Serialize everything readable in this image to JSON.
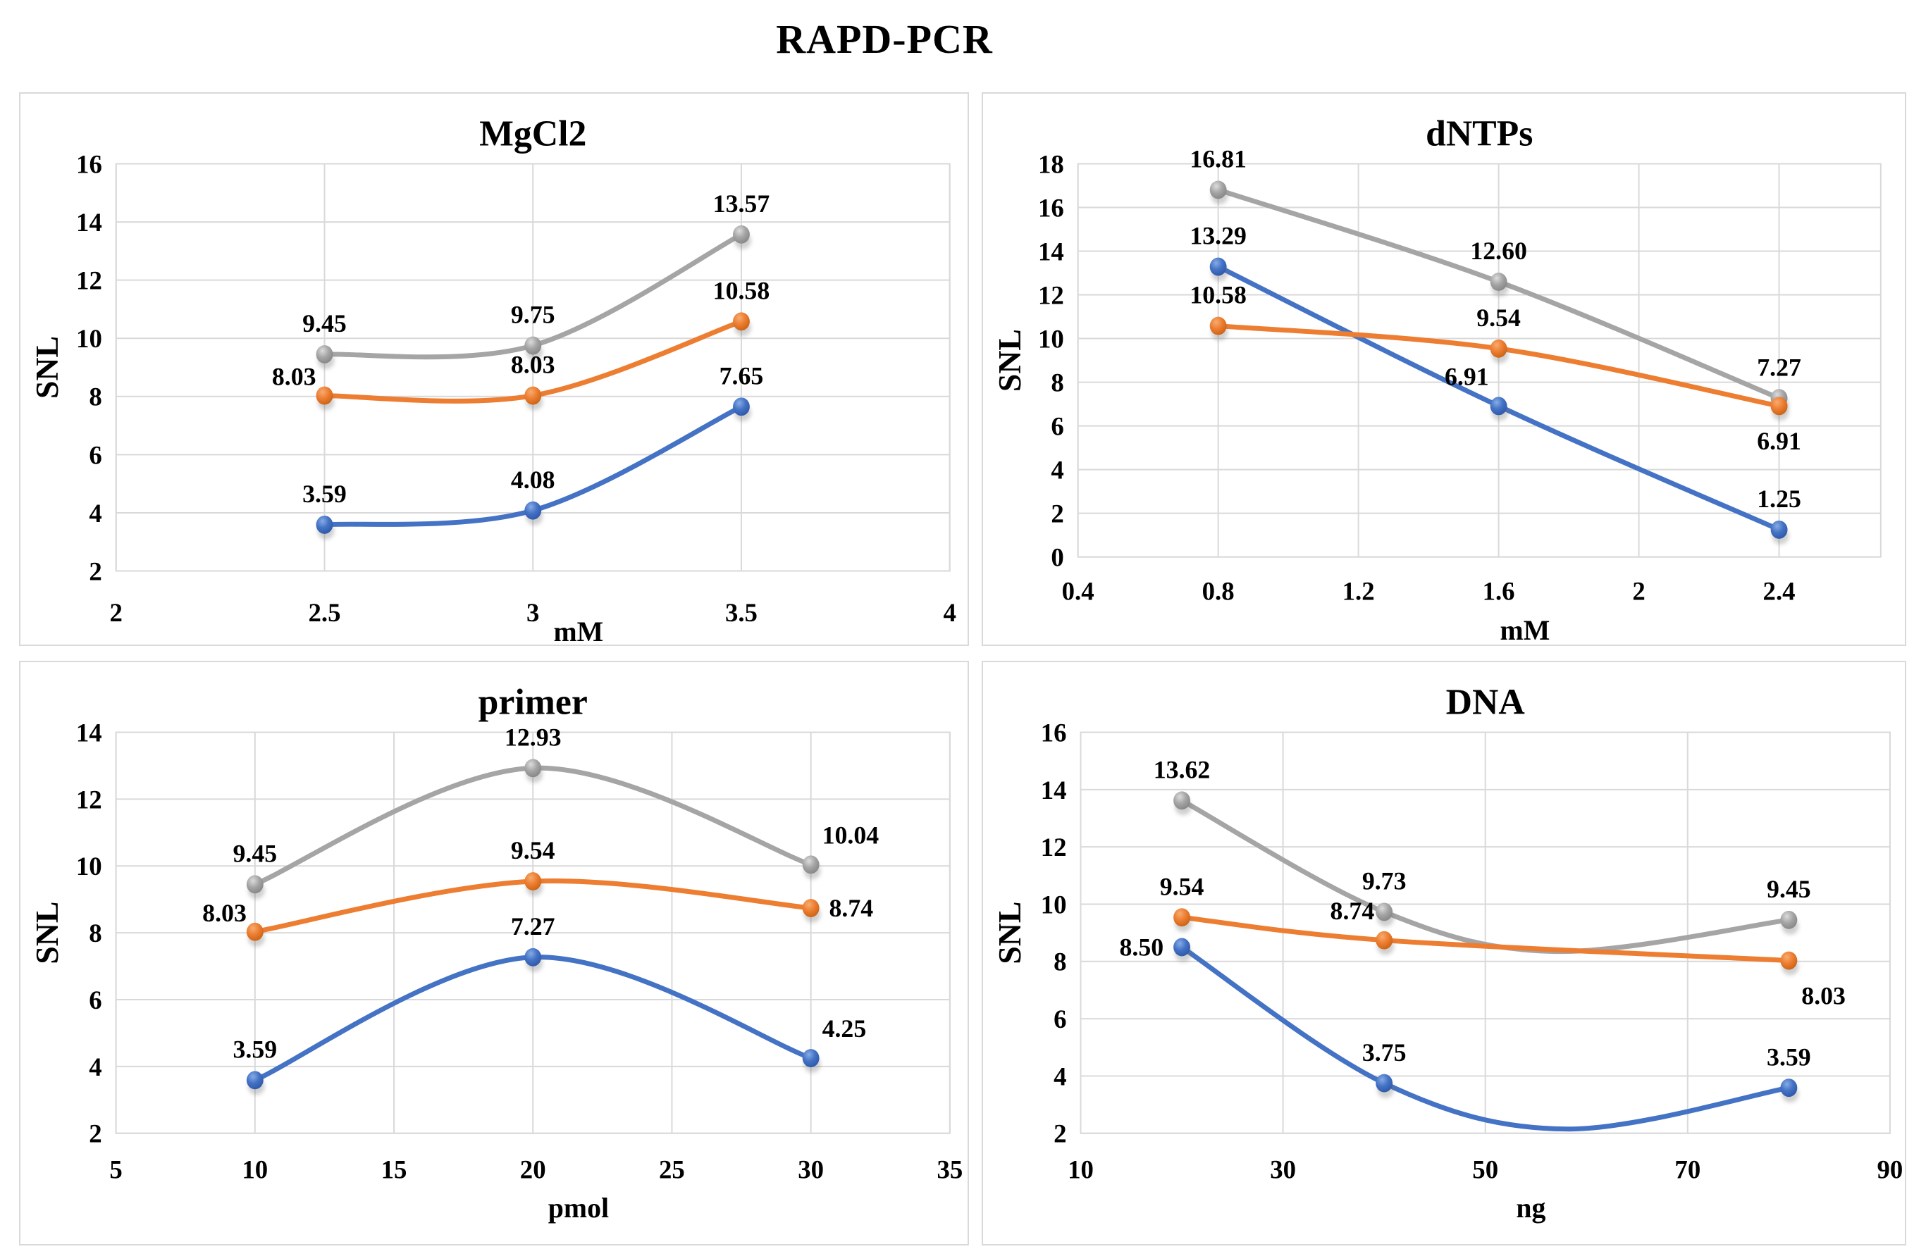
{
  "main_title": "RAPD-PCR",
  "colors": {
    "blue": "#4472C4",
    "orange": "#ED7D31",
    "gray": "#A5A5A5",
    "gridline": "#D9D9D9",
    "panel_border": "#D9D9D9",
    "text": "#000000",
    "background": "#FFFFFF"
  },
  "chart_data": [
    {
      "id": "mgcl2",
      "type": "line",
      "title": "MgCl2",
      "xlabel": "mM",
      "ylabel": "SNL",
      "xlim": [
        2,
        4
      ],
      "ylim": [
        2,
        16
      ],
      "x_ticks": [
        "2",
        "2.5",
        "3",
        "3.5",
        "4"
      ],
      "y_ticks": [
        "2",
        "4",
        "6",
        "8",
        "10",
        "12",
        "14",
        "16"
      ],
      "grid": true,
      "legend": "none",
      "x": [
        2.5,
        3,
        3.5
      ],
      "series": [
        {
          "name": "blue",
          "color": "blue",
          "values": [
            3.59,
            4.08,
            7.65
          ],
          "labels": [
            "3.59",
            "4.08",
            "7.65"
          ],
          "label_pos": [
            "above",
            "above",
            "above"
          ]
        },
        {
          "name": "gray",
          "color": "gray",
          "values": [
            9.45,
            9.75,
            13.57
          ],
          "labels": [
            "9.45",
            "9.75",
            "13.57"
          ],
          "label_pos": [
            "above",
            "above",
            "above"
          ]
        },
        {
          "name": "orange",
          "color": "orange",
          "values": [
            8.03,
            8.03,
            10.58
          ],
          "labels": [
            "8.03",
            "8.03",
            "10.58"
          ],
          "label_pos": [
            "upleft",
            "above",
            "above"
          ]
        }
      ]
    },
    {
      "id": "dntps",
      "type": "line",
      "title": "dNTPs",
      "xlabel": "mM",
      "ylabel": "SNL",
      "xlim": [
        0.4,
        2.4
      ],
      "ylim": [
        0,
        18
      ],
      "x_ticks": [
        "0.4",
        "0.8",
        "1.2",
        "1.6",
        "2",
        "2.4"
      ],
      "y_ticks": [
        "0",
        "2",
        "4",
        "6",
        "8",
        "10",
        "12",
        "14",
        "16",
        "18"
      ],
      "grid": true,
      "legend": "none",
      "x": [
        0.8,
        1.6,
        2.4
      ],
      "series": [
        {
          "name": "blue",
          "color": "blue",
          "values": [
            13.29,
            6.91,
            1.25
          ],
          "labels": [
            "13.29",
            "6.91",
            "1.25"
          ],
          "label_pos": [
            "above",
            "above-left",
            "above"
          ]
        },
        {
          "name": "gray",
          "color": "gray",
          "values": [
            16.81,
            12.6,
            7.27
          ],
          "labels": [
            "16.81",
            "12.60",
            "7.27"
          ],
          "label_pos": [
            "above",
            "above",
            "above"
          ]
        },
        {
          "name": "orange",
          "color": "orange",
          "values": [
            10.58,
            9.54,
            6.91
          ],
          "labels": [
            "10.58",
            "9.54",
            "6.91"
          ],
          "label_pos": [
            "above",
            "above",
            "below"
          ]
        }
      ]
    },
    {
      "id": "primer",
      "type": "line",
      "title": "primer",
      "xlabel": "pmol",
      "ylabel": "SNL",
      "xlim": [
        5,
        35
      ],
      "ylim": [
        2,
        14
      ],
      "x_ticks": [
        "5",
        "10",
        "15",
        "20",
        "25",
        "30",
        "35"
      ],
      "y_ticks": [
        "2",
        "4",
        "6",
        "8",
        "10",
        "12",
        "14"
      ],
      "grid": true,
      "legend": "none",
      "x": [
        10,
        20,
        30
      ],
      "series": [
        {
          "name": "blue",
          "color": "blue",
          "values": [
            3.59,
            7.27,
            4.25
          ],
          "labels": [
            "3.59",
            "7.27",
            "4.25"
          ],
          "label_pos": [
            "above",
            "above",
            "above-right"
          ]
        },
        {
          "name": "gray",
          "color": "gray",
          "values": [
            9.45,
            12.93,
            10.04
          ],
          "labels": [
            "9.45",
            "12.93",
            "10.04"
          ],
          "label_pos": [
            "above",
            "above",
            "above-right"
          ]
        },
        {
          "name": "orange",
          "color": "orange",
          "values": [
            8.03,
            9.54,
            8.74
          ],
          "labels": [
            "8.03",
            "9.54",
            "8.74"
          ],
          "label_pos": [
            "upleft",
            "above",
            "right"
          ]
        }
      ]
    },
    {
      "id": "dna",
      "type": "line",
      "title": "DNA",
      "xlabel": "ng",
      "ylabel": "SNL",
      "xlim": [
        10,
        90
      ],
      "ylim": [
        2,
        16
      ],
      "x_ticks": [
        "10",
        "30",
        "50",
        "70",
        "90"
      ],
      "y_ticks": [
        "2",
        "4",
        "6",
        "8",
        "10",
        "12",
        "14",
        "16"
      ],
      "grid": true,
      "legend": "none",
      "x": [
        20,
        40,
        80
      ],
      "series": [
        {
          "name": "blue",
          "color": "blue",
          "values": [
            8.5,
            3.75,
            3.59
          ],
          "labels": [
            "8.50",
            "3.75",
            "3.59"
          ],
          "label_pos": [
            "left",
            "above",
            "above"
          ]
        },
        {
          "name": "gray",
          "color": "gray",
          "values": [
            13.62,
            9.73,
            9.45
          ],
          "labels": [
            "13.62",
            "9.73",
            "9.45"
          ],
          "label_pos": [
            "above",
            "above",
            "above"
          ]
        },
        {
          "name": "orange",
          "color": "orange",
          "values": [
            9.54,
            8.74,
            8.03
          ],
          "labels": [
            "9.54",
            "8.74",
            "8.03"
          ],
          "label_pos": [
            "above",
            "above-left",
            "below-right"
          ]
        }
      ]
    }
  ]
}
